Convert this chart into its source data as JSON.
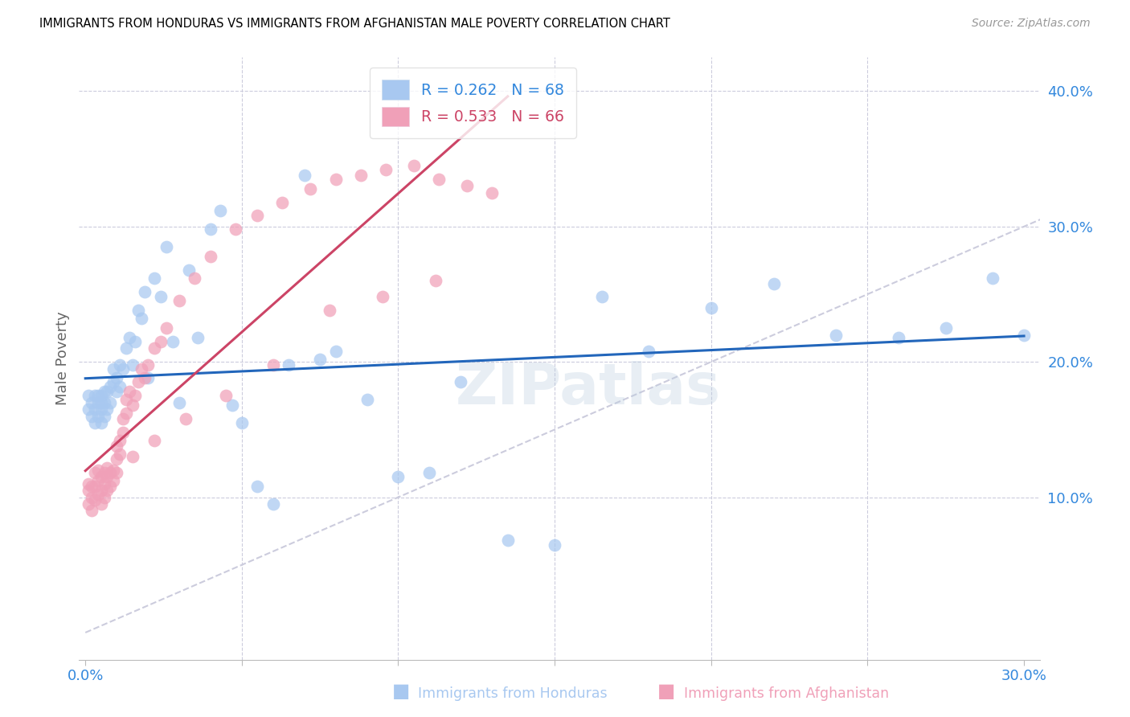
{
  "title": "IMMIGRANTS FROM HONDURAS VS IMMIGRANTS FROM AFGHANISTAN MALE POVERTY CORRELATION CHART",
  "source": "Source: ZipAtlas.com",
  "xlabel_honduras": "Immigrants from Honduras",
  "xlabel_afghanistan": "Immigrants from Afghanistan",
  "ylabel": "Male Poverty",
  "xlim": [
    -0.002,
    0.305
  ],
  "ylim": [
    -0.02,
    0.425
  ],
  "R_honduras": 0.262,
  "N_honduras": 68,
  "R_afghanistan": 0.533,
  "N_afghanistan": 66,
  "color_honduras": "#a8c8f0",
  "color_afghanistan": "#f0a0b8",
  "color_line_honduras": "#2266bb",
  "color_line_afghanistan": "#cc4466",
  "color_diagonal": "#ccccdd",
  "color_axis": "#3388dd",
  "watermark": "ZIPatlas",
  "hon_x": [
    0.001,
    0.001,
    0.002,
    0.002,
    0.003,
    0.003,
    0.003,
    0.004,
    0.004,
    0.004,
    0.005,
    0.005,
    0.005,
    0.005,
    0.006,
    0.006,
    0.006,
    0.007,
    0.007,
    0.008,
    0.008,
    0.009,
    0.009,
    0.01,
    0.01,
    0.011,
    0.011,
    0.012,
    0.013,
    0.014,
    0.015,
    0.016,
    0.017,
    0.018,
    0.019,
    0.02,
    0.022,
    0.024,
    0.026,
    0.028,
    0.03,
    0.033,
    0.036,
    0.04,
    0.043,
    0.047,
    0.05,
    0.055,
    0.06,
    0.065,
    0.07,
    0.075,
    0.08,
    0.09,
    0.1,
    0.11,
    0.12,
    0.135,
    0.15,
    0.165,
    0.18,
    0.2,
    0.22,
    0.24,
    0.26,
    0.275,
    0.29,
    0.3
  ],
  "hon_y": [
    0.165,
    0.175,
    0.16,
    0.17,
    0.155,
    0.165,
    0.175,
    0.16,
    0.17,
    0.175,
    0.155,
    0.165,
    0.17,
    0.175,
    0.16,
    0.17,
    0.178,
    0.165,
    0.178,
    0.17,
    0.182,
    0.185,
    0.195,
    0.178,
    0.188,
    0.182,
    0.198,
    0.195,
    0.21,
    0.218,
    0.198,
    0.215,
    0.238,
    0.232,
    0.252,
    0.188,
    0.262,
    0.248,
    0.285,
    0.215,
    0.17,
    0.268,
    0.218,
    0.298,
    0.312,
    0.168,
    0.155,
    0.108,
    0.095,
    0.198,
    0.338,
    0.202,
    0.208,
    0.172,
    0.115,
    0.118,
    0.185,
    0.068,
    0.065,
    0.248,
    0.208,
    0.24,
    0.258,
    0.22,
    0.218,
    0.225,
    0.262,
    0.22
  ],
  "afg_x": [
    0.001,
    0.001,
    0.001,
    0.002,
    0.002,
    0.002,
    0.003,
    0.003,
    0.003,
    0.004,
    0.004,
    0.004,
    0.005,
    0.005,
    0.005,
    0.006,
    0.006,
    0.006,
    0.007,
    0.007,
    0.007,
    0.008,
    0.008,
    0.009,
    0.009,
    0.01,
    0.01,
    0.011,
    0.011,
    0.012,
    0.012,
    0.013,
    0.013,
    0.014,
    0.015,
    0.016,
    0.017,
    0.018,
    0.019,
    0.02,
    0.022,
    0.024,
    0.026,
    0.03,
    0.035,
    0.04,
    0.048,
    0.055,
    0.063,
    0.072,
    0.08,
    0.088,
    0.096,
    0.105,
    0.113,
    0.122,
    0.13,
    0.112,
    0.095,
    0.078,
    0.06,
    0.045,
    0.032,
    0.022,
    0.015,
    0.01
  ],
  "afg_y": [
    0.095,
    0.105,
    0.11,
    0.09,
    0.1,
    0.108,
    0.098,
    0.108,
    0.118,
    0.102,
    0.112,
    0.12,
    0.095,
    0.105,
    0.115,
    0.1,
    0.11,
    0.118,
    0.105,
    0.115,
    0.122,
    0.108,
    0.118,
    0.112,
    0.12,
    0.128,
    0.138,
    0.132,
    0.142,
    0.148,
    0.158,
    0.162,
    0.172,
    0.178,
    0.168,
    0.175,
    0.185,
    0.195,
    0.188,
    0.198,
    0.21,
    0.215,
    0.225,
    0.245,
    0.262,
    0.278,
    0.298,
    0.308,
    0.318,
    0.328,
    0.335,
    0.338,
    0.342,
    0.345,
    0.335,
    0.33,
    0.325,
    0.26,
    0.248,
    0.238,
    0.198,
    0.175,
    0.158,
    0.142,
    0.13,
    0.118
  ]
}
